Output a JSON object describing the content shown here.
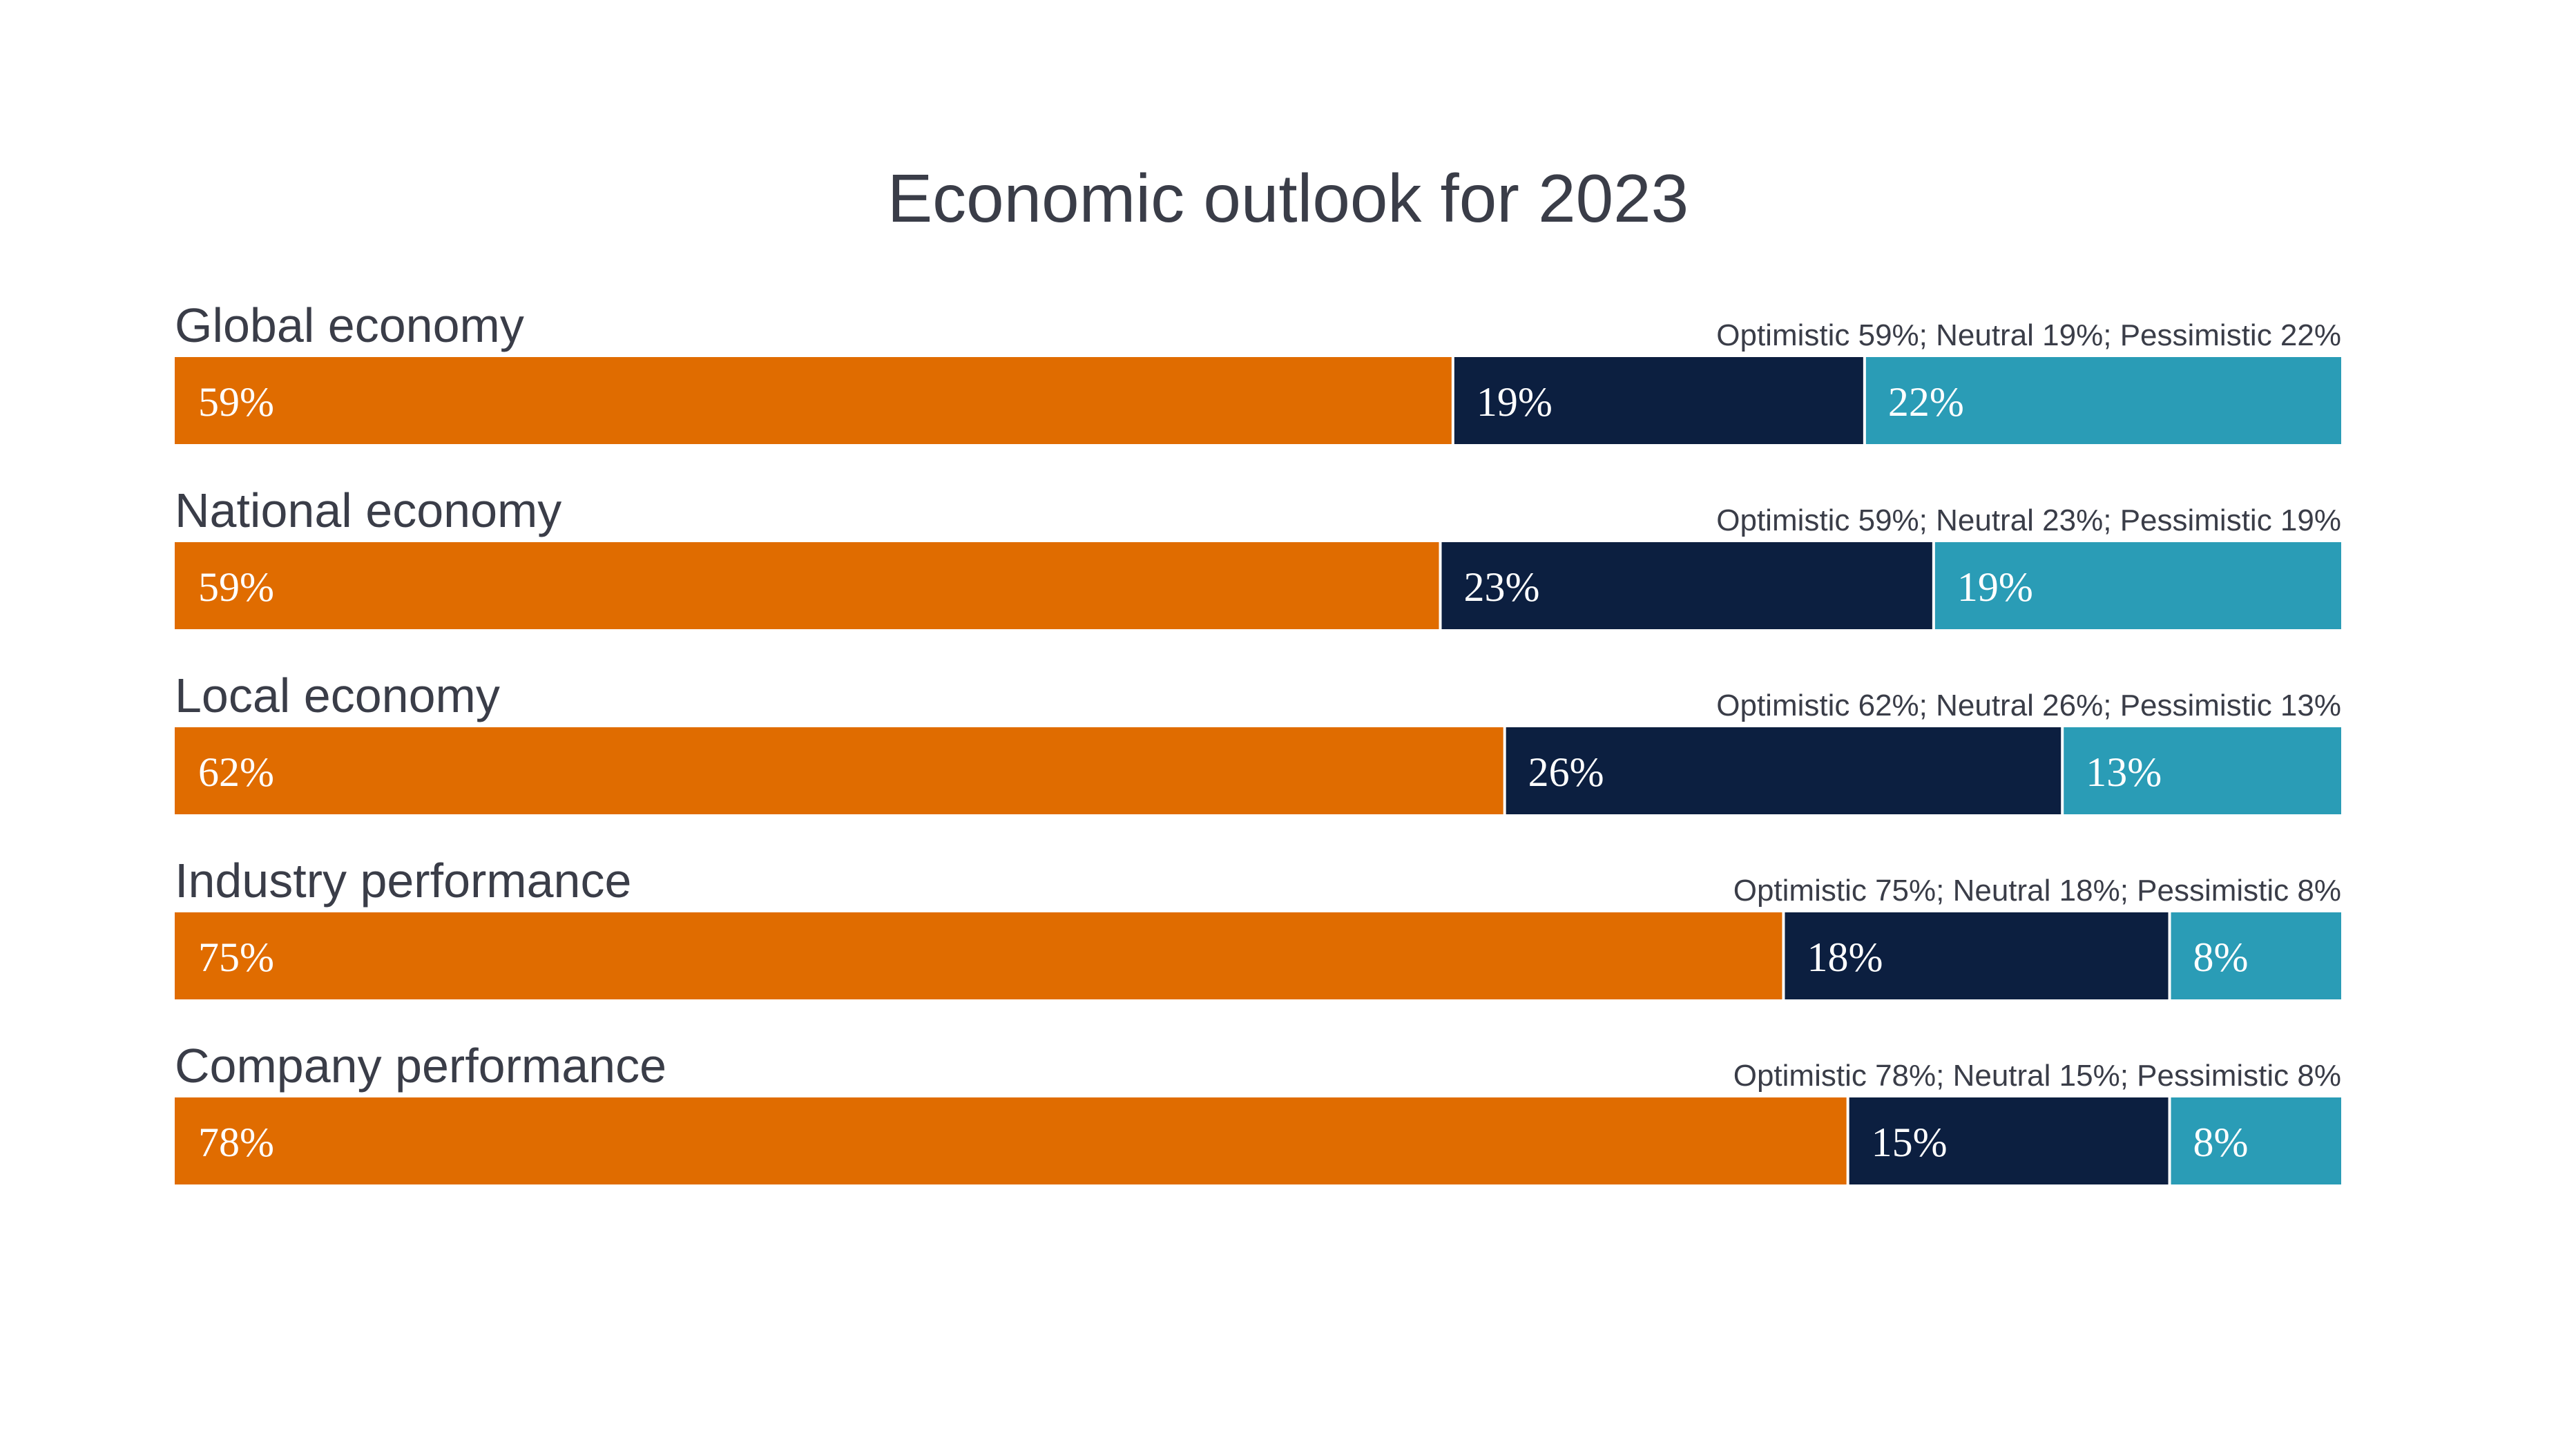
{
  "chart_data": {
    "type": "bar",
    "orientation": "horizontal",
    "stacked": true,
    "percent": true,
    "title": "Economic outlook for 2023",
    "categories": [
      "Global economy",
      "National economy",
      "Local economy",
      "Industry performance",
      "Company performance"
    ],
    "series": [
      {
        "name": "Optimistic",
        "color": "#e06c00",
        "values": [
          59,
          59,
          62,
          75,
          78
        ],
        "labels": [
          "59%",
          "59%",
          "62%",
          "75%",
          "78%"
        ]
      },
      {
        "name": "Neutral",
        "color": "#0c1f40",
        "values": [
          19,
          23,
          26,
          18,
          15
        ],
        "labels": [
          "19%",
          "23%",
          "26%",
          "18%",
          "15%"
        ]
      },
      {
        "name": "Pessimistic",
        "color": "#2a9cb6",
        "values": [
          22,
          19,
          13,
          8,
          8
        ],
        "labels": [
          "22%",
          "19%",
          "13%",
          "8%",
          "8%"
        ]
      }
    ],
    "row_summaries": [
      "Optimistic 59%; Neutral 19%; Pessimistic 22%",
      "Optimistic 59%; Neutral 23%; Pessimistic 19%",
      "Optimistic 62%; Neutral 26%; Pessimistic 13%",
      "Optimistic 75%; Neutral 18%; Pessimistic 8%",
      "Optimistic 78%; Neutral 15%; Pessimistic 8%"
    ],
    "xlim": [
      0,
      100
    ],
    "grid": false,
    "legend": "none"
  }
}
